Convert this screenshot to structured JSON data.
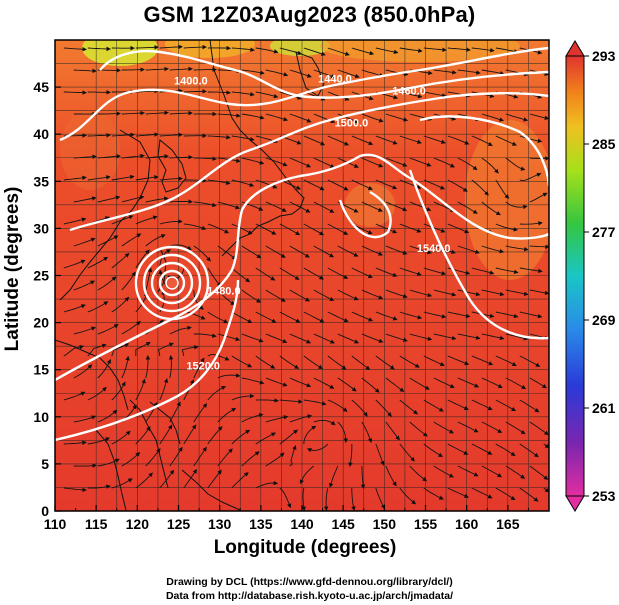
{
  "title": "GSM 12Z03Aug2023 (850.0hPa)",
  "x_axis": {
    "label": "Longitude (degrees)",
    "ticks": [
      "110",
      "115",
      "120",
      "125",
      "130",
      "135",
      "140",
      "145",
      "150",
      "155",
      "160",
      "165"
    ],
    "range": [
      110,
      170
    ]
  },
  "y_axis": {
    "label": "Latitude  (degrees)",
    "ticks": [
      "0",
      "5",
      "10",
      "15",
      "20",
      "25",
      "30",
      "35",
      "40",
      "45"
    ],
    "range": [
      0,
      50
    ]
  },
  "colorbar": {
    "ticks": [
      "293",
      "285",
      "277",
      "269",
      "261",
      "253"
    ],
    "range": [
      253,
      293
    ],
    "colors": [
      "#e22ea0",
      "#3a1fa8",
      "#2a7be8",
      "#19c6c6",
      "#36c640",
      "#a6e01a",
      "#f0d020",
      "#f39a16",
      "#ec5a26",
      "#e03430"
    ]
  },
  "contour_labels": [
    {
      "text": "1400.0",
      "lon": 126.5,
      "lat": 45.3
    },
    {
      "text": "1440.0",
      "lon": 144.0,
      "lat": 45.5
    },
    {
      "text": "1460.0",
      "lon": 153.0,
      "lat": 44.2
    },
    {
      "text": "1500.0",
      "lon": 146.0,
      "lat": 40.8
    },
    {
      "text": "1540.0",
      "lon": 156.0,
      "lat": 27.5
    },
    {
      "text": "1480.0",
      "lon": 130.5,
      "lat": 23.0
    },
    {
      "text": "1520.0",
      "lon": 128.0,
      "lat": 15.0
    }
  ],
  "typhoon_center": {
    "lon": 124.5,
    "lat": 26.8
  },
  "footer": {
    "line1": "Drawing by DCL (https://www.gfd-dennou.org/library/dcl/)",
    "line2": "Data from http://database.rish.kyoto-u.ac.jp/arch/jmadata/"
  }
}
